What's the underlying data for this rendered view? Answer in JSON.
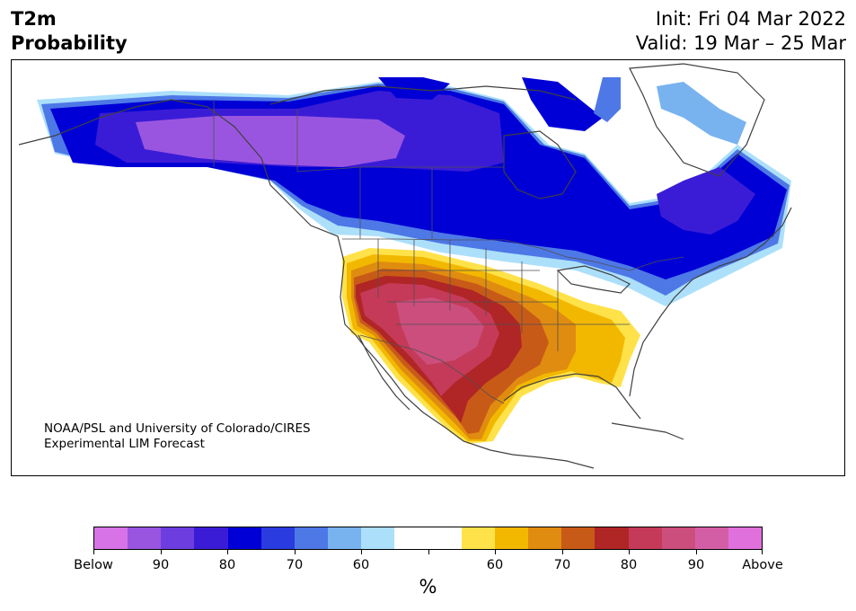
{
  "header": {
    "title_line1": "T2m",
    "title_line2": "Probability",
    "init_text": "Init: Fri 04 Mar 2022",
    "valid_text": "Valid: 19 Mar – 25 Mar"
  },
  "credit": {
    "line1": "NOAA/PSL and University of Colorado/CIRES",
    "line2": "Experimental LIM Forecast"
  },
  "colorbar": {
    "colors": [
      "#d773e6",
      "#9a55e0",
      "#6e3ddf",
      "#3b1cd6",
      "#0000d6",
      "#2a3be0",
      "#4d78e6",
      "#78b3f0",
      "#acdffa",
      "#ffffff",
      "#ffffff",
      "#ffe24a",
      "#f2b800",
      "#e08c10",
      "#c85a18",
      "#b02525",
      "#c43a58",
      "#cc4e7c",
      "#d45ea6",
      "#e070dc"
    ],
    "tick_labels": [
      "Below",
      "90",
      "80",
      "70",
      "60",
      "",
      "60",
      "70",
      "80",
      "90",
      "Above"
    ],
    "unit_label": "%"
  },
  "palette": {
    "cold_region_colors": [
      "#acdffa",
      "#78b3f0",
      "#4d78e6",
      "#2a3be0",
      "#0000d6",
      "#3b1cd6",
      "#6e3ddf",
      "#9a55e0"
    ],
    "warm_region_colors": [
      "#ffe24a",
      "#f2b800",
      "#e08c10",
      "#c85a18",
      "#b02525",
      "#c43a58",
      "#cc4e7c"
    ],
    "coastline_color": "#404040"
  }
}
